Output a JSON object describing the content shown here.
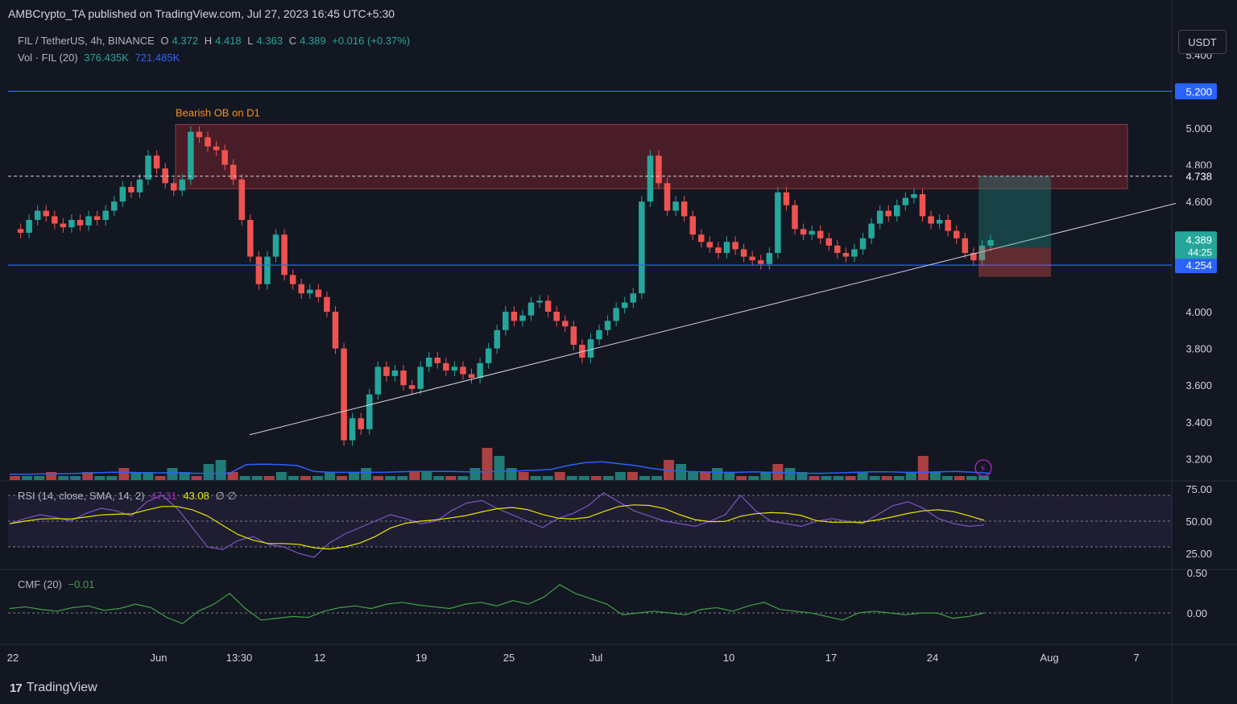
{
  "banner": "AMBCrypto_TA published on TradingView.com, Jul 27, 2023 16:45 UTC+5:30",
  "legend": {
    "symbol": "FIL / TetherUS, 4h, BINANCE",
    "o_label": "O",
    "o_value": "4.372",
    "h_label": "H",
    "h_value": "4.418",
    "l_label": "L",
    "l_value": "4.363",
    "c_label": "C",
    "c_value": "4.389",
    "change": "+0.016 (+0.37%)",
    "vol_label": "Vol · FIL (20)",
    "vol_value": "376.435K",
    "vol_ma": "721.485K"
  },
  "rsi_legend": {
    "label": "RSI (14, close, SMA, 14, 2)",
    "rsi_value": "47.31",
    "sma_value": "43.08",
    "extra": "∅ ∅"
  },
  "cmf_legend": {
    "label": "CMF (20)",
    "value": "−0.01"
  },
  "currency_button": "USDT",
  "brand": "TradingView",
  "colors": {
    "bg": "#131722",
    "up": "#26a69a",
    "down": "#ef5350",
    "rsi": "#7e57c2",
    "rsi_ma": "#e6e600",
    "cmf": "#43a047",
    "hline": "#2962ff",
    "ob_fill": "#5c2029"
  },
  "chart_data": {
    "type": "candlestick",
    "price_axis_ticks": [
      "5.400",
      "5.000",
      "4.800",
      "4.600",
      "4.400",
      "4.000",
      "3.800",
      "3.600",
      "3.400",
      "3.200"
    ],
    "price_labels": {
      "resistance": "5.200",
      "dashed": "4.738",
      "last": "4.389",
      "countdown": "44:25",
      "support": "4.254"
    },
    "annotation": "Bearish OB on D1",
    "order_block": {
      "low": 4.67,
      "high": 5.02,
      "from": "Jun 1",
      "to": "Aug 5"
    },
    "trendline": {
      "start": {
        "date": "May 29",
        "price": 3.33
      },
      "end": {
        "date": "Aug 4",
        "price": 4.59
      }
    },
    "hlines": [
      {
        "price": 5.2,
        "style": "solid"
      },
      {
        "price": 4.738,
        "style": "dashed"
      },
      {
        "price": 4.254,
        "style": "solid"
      }
    ],
    "long_position": {
      "entry": 4.35,
      "target": 4.738,
      "stop": 4.19
    },
    "x_ticks": [
      "22",
      "Jun",
      "13:30",
      "12",
      "19",
      "25",
      "Jul",
      "10",
      "17",
      "24",
      "Aug",
      "7"
    ],
    "price_path": [
      4.45,
      4.43,
      4.5,
      4.55,
      4.52,
      4.48,
      4.46,
      4.5,
      4.47,
      4.52,
      4.5,
      4.55,
      4.6,
      4.68,
      4.65,
      4.72,
      4.85,
      4.78,
      4.7,
      4.66,
      4.72,
      4.98,
      4.95,
      4.9,
      4.88,
      4.8,
      4.72,
      4.5,
      4.3,
      4.15,
      4.3,
      4.42,
      4.2,
      4.15,
      4.1,
      4.12,
      4.08,
      4.0,
      3.8,
      3.3,
      3.42,
      3.36,
      3.55,
      3.7,
      3.65,
      3.68,
      3.6,
      3.58,
      3.7,
      3.75,
      3.72,
      3.68,
      3.7,
      3.66,
      3.64,
      3.72,
      3.8,
      3.9,
      4.0,
      3.95,
      3.98,
      4.05,
      4.06,
      4.0,
      3.95,
      3.92,
      3.82,
      3.75,
      3.85,
      3.9,
      3.95,
      4.02,
      4.05,
      4.1,
      4.6,
      4.85,
      4.7,
      4.55,
      4.6,
      4.52,
      4.42,
      4.38,
      4.35,
      4.32,
      4.38,
      4.34,
      4.3,
      4.28,
      4.26,
      4.32,
      4.65,
      4.58,
      4.45,
      4.42,
      4.44,
      4.4,
      4.36,
      4.32,
      4.3,
      4.34,
      4.4,
      4.48,
      4.55,
      4.52,
      4.58,
      4.62,
      4.64,
      4.52,
      4.48,
      4.5,
      4.44,
      4.4,
      4.32,
      4.28,
      4.36,
      4.39
    ],
    "rsi_axis_ticks": [
      "75.00",
      "50.00",
      "25.00"
    ],
    "rsi_bands": {
      "upper": 70,
      "middle": 50,
      "lower": 30
    },
    "rsi_path": [
      48,
      52,
      55,
      53,
      50,
      56,
      60,
      58,
      54,
      65,
      70,
      60,
      45,
      30,
      28,
      35,
      38,
      32,
      30,
      25,
      22,
      33,
      40,
      45,
      50,
      55,
      52,
      48,
      50,
      58,
      64,
      66,
      60,
      55,
      50,
      45,
      52,
      56,
      62,
      72,
      65,
      58,
      54,
      50,
      48,
      46,
      50,
      55,
      70,
      58,
      50,
      48,
      46,
      50,
      52,
      50,
      48,
      55,
      62,
      65,
      60,
      52,
      48,
      46,
      47
    ],
    "cmf_axis_ticks": [
      "0.50",
      "0.00"
    ],
    "cmf_path": [
      0.05,
      0.07,
      0.04,
      0.02,
      0.06,
      0.08,
      0.03,
      0.05,
      0.1,
      0.06,
      -0.05,
      -0.12,
      0.02,
      0.1,
      0.22,
      0.05,
      -0.08,
      -0.06,
      -0.04,
      -0.05,
      0.02,
      0.06,
      0.08,
      0.05,
      0.1,
      0.12,
      0.09,
      0.07,
      0.05,
      0.1,
      0.12,
      0.08,
      0.14,
      0.1,
      0.18,
      0.32,
      0.22,
      0.16,
      0.1,
      -0.02,
      0.0,
      0.02,
      0.0,
      -0.02,
      0.04,
      0.06,
      0.02,
      0.08,
      0.12,
      0.04,
      0.02,
      0.0,
      -0.04,
      -0.08,
      0.0,
      0.02,
      0.0,
      -0.02,
      0.0,
      0.0,
      -0.06,
      -0.04,
      0.0
    ],
    "volume_profile": [
      1,
      1,
      1,
      2,
      1,
      1,
      2,
      1,
      1,
      3,
      2,
      2,
      1,
      3,
      2,
      1,
      4,
      5,
      2,
      1,
      1,
      1,
      2,
      1,
      1,
      1,
      2,
      1,
      2,
      3,
      1,
      1,
      1,
      2,
      2,
      1,
      1,
      1,
      3,
      8,
      6,
      3,
      2,
      1,
      1,
      2,
      1,
      1,
      1,
      1,
      2,
      2,
      1,
      1,
      5,
      4,
      2,
      2,
      3,
      2,
      1,
      1,
      2,
      4,
      3,
      2,
      1,
      1,
      1,
      1,
      2,
      1,
      1,
      1,
      2,
      6,
      2,
      1,
      1,
      1,
      1
    ],
    "volume_ma": [
      1.2,
      1.2,
      1.3,
      1.3,
      1.4,
      1.5,
      1.6,
      1.6,
      1.5,
      1.5,
      1.5,
      1.4,
      1.4,
      1.4,
      3.2,
      3.3,
      3.2,
      3.0,
      1.8,
      1.6,
      1.6,
      1.6,
      1.6,
      1.7,
      1.8,
      1.8,
      1.8,
      1.7,
      1.7,
      1.8,
      1.9,
      2.0,
      2.2,
      3.0,
      3.6,
      3.8,
      3.4,
      3.0,
      2.4,
      2.0,
      1.8,
      1.7,
      1.6,
      1.6,
      1.7,
      1.6,
      1.5,
      1.4,
      1.4,
      1.5,
      1.6,
      1.7,
      1.7,
      1.6,
      1.6,
      1.7,
      1.8,
      1.6,
      1.4
    ]
  }
}
